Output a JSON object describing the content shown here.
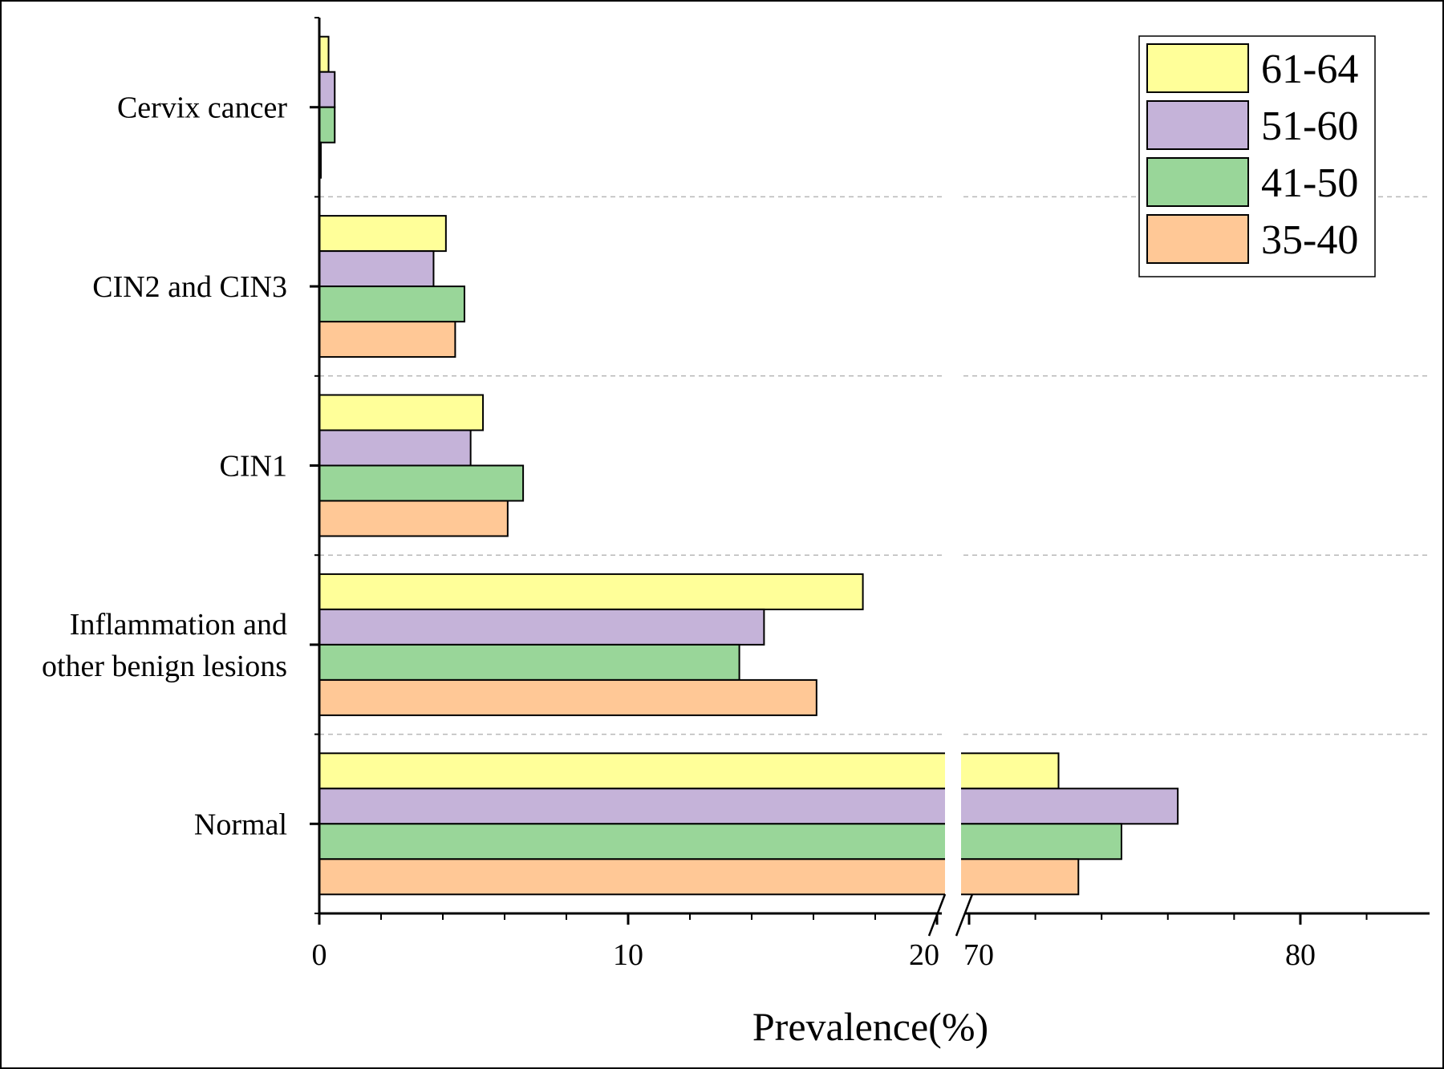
{
  "chart_data": {
    "type": "bar",
    "orientation": "horizontal",
    "categories": [
      "Cervix cancer",
      "CIN2 and CIN3",
      "CIN1",
      "Inflammation and other benign lesions",
      "Normal"
    ],
    "category_label_lines": [
      [
        "Cervix cancer"
      ],
      [
        "CIN2 and CIN3"
      ],
      [
        "CIN1"
      ],
      [
        "Inflammation and",
        "other benign lesions"
      ],
      [
        "Normal"
      ]
    ],
    "series": [
      {
        "name": "61-64",
        "color": "#ffff99",
        "values": [
          0.3,
          4.1,
          5.3,
          17.6,
          72.7
        ]
      },
      {
        "name": "51-60",
        "color": "#c5b3d9",
        "values": [
          0.5,
          3.7,
          4.9,
          14.4,
          76.3
        ]
      },
      {
        "name": "41-50",
        "color": "#99d699",
        "values": [
          0.5,
          4.7,
          6.6,
          13.6,
          74.6
        ]
      },
      {
        "name": "35-40",
        "color": "#ffc896",
        "values": [
          0.05,
          4.4,
          6.1,
          16.1,
          73.3
        ]
      }
    ],
    "xlabel": "Prevalence(%)",
    "ylabel": "",
    "x_axis": {
      "broken": true,
      "segments": [
        [
          0,
          20
        ],
        [
          70,
          83.9
        ]
      ],
      "major_ticks": [
        0,
        10,
        20,
        70,
        80
      ],
      "tick_labels": [
        "0",
        "10",
        "20",
        "70",
        "80"
      ]
    },
    "grid": "dashed horizontal separators between categories",
    "legend": {
      "placement": "top-right",
      "order": [
        "61-64",
        "51-60",
        "41-50",
        "35-40"
      ]
    }
  }
}
